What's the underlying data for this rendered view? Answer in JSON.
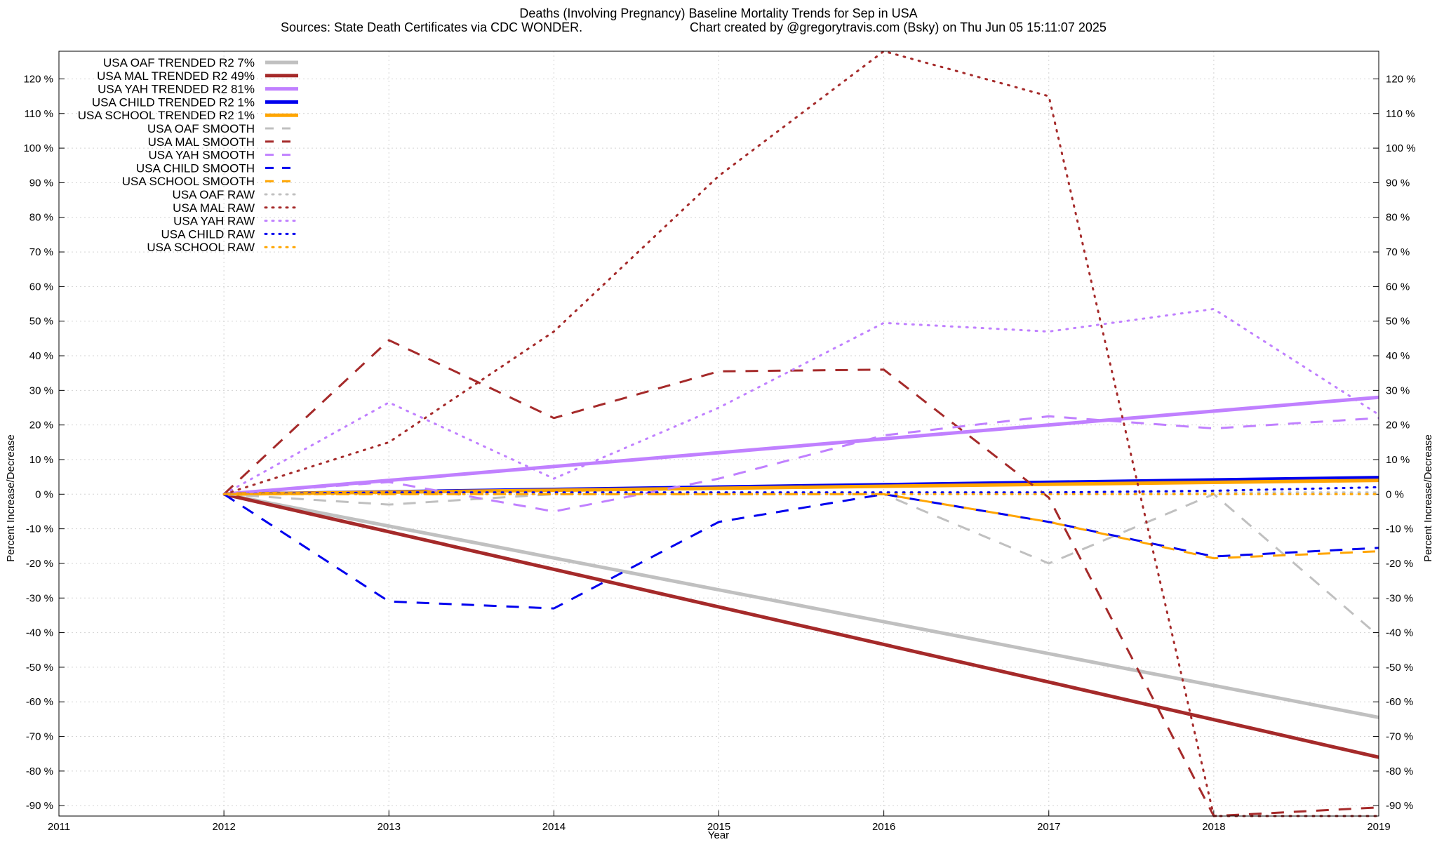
{
  "chart_data": {
    "type": "line",
    "title": "Deaths (Involving Pregnancy)  Baseline Mortality Trends for Sep in USA",
    "subtitle_left": "Sources: State Death Certificates via CDC WONDER.",
    "subtitle_right": "Chart created by @gregorytravis.com (Bsky) on Thu Jun 05 15:11:07 2025",
    "xlabel": "Year",
    "ylabel": "Percent Increase/Decrease",
    "ylabel_right": "Percent Increase/Decrease",
    "xlim": [
      2011,
      2019
    ],
    "ylim": [
      -93,
      128
    ],
    "x_ticks": [
      "2011",
      "2012",
      "2013",
      "2014",
      "2015",
      "2016",
      "2017",
      "2018",
      "2019"
    ],
    "y_ticks": [
      -90,
      -80,
      -70,
      -60,
      -50,
      -40,
      -30,
      -20,
      -10,
      0,
      10,
      20,
      30,
      40,
      50,
      60,
      70,
      80,
      90,
      100,
      110,
      120
    ],
    "y_tick_suffix": " %",
    "grid": true,
    "legend_position": "top-left",
    "series": [
      {
        "name": "USA OAF TRENDED R2   7%",
        "style": "solid",
        "width": 5,
        "color": "#c0c0c0",
        "x": [
          2012,
          2019
        ],
        "y": [
          0,
          -64.5
        ]
      },
      {
        "name": "USA MAL TRENDED R2  49%",
        "style": "solid",
        "width": 5,
        "color": "#a52a2a",
        "x": [
          2012,
          2019
        ],
        "y": [
          0,
          -76
        ]
      },
      {
        "name": "USA YAH TRENDED R2  81%",
        "style": "solid",
        "width": 5,
        "color": "#c080ff",
        "x": [
          2012,
          2019
        ],
        "y": [
          0,
          28
        ]
      },
      {
        "name": "USA CHILD TRENDED R2   1%",
        "style": "solid",
        "width": 5,
        "color": "#0000ee",
        "x": [
          2012,
          2019
        ],
        "y": [
          0,
          4.8
        ]
      },
      {
        "name": "USA SCHOOL TRENDED R2   1%",
        "style": "solid",
        "width": 5,
        "color": "#ffa500",
        "x": [
          2012,
          2019
        ],
        "y": [
          0,
          4.0
        ]
      },
      {
        "name": "USA OAF SMOOTH",
        "style": "dash",
        "width": 3,
        "color": "#c0c0c0",
        "x": [
          2012,
          2013,
          2014,
          2015,
          2016,
          2017,
          2018,
          2019
        ],
        "y": [
          0,
          -3,
          0,
          0,
          0,
          -20,
          0,
          -41
        ]
      },
      {
        "name": "USA MAL SMOOTH",
        "style": "dash",
        "width": 3,
        "color": "#a52a2a",
        "x": [
          2012,
          2013,
          2014,
          2015,
          2016,
          2017,
          2018,
          2019
        ],
        "y": [
          0,
          44.5,
          22,
          35.5,
          36,
          -1,
          -93,
          -90.5
        ]
      },
      {
        "name": "USA YAH SMOOTH",
        "style": "dash",
        "width": 3,
        "color": "#c080ff",
        "x": [
          2012,
          2013,
          2014,
          2015,
          2016,
          2017,
          2018,
          2019
        ],
        "y": [
          0,
          3.5,
          -5,
          4.5,
          17,
          22.5,
          19,
          22
        ]
      },
      {
        "name": "USA CHILD SMOOTH",
        "style": "dash",
        "width": 3,
        "color": "#0000ee",
        "x": [
          2012,
          2013,
          2014,
          2015,
          2016,
          2017,
          2018,
          2019
        ],
        "y": [
          0,
          -31,
          -33,
          -8,
          0,
          -8,
          -18,
          -15.5
        ]
      },
      {
        "name": "USA SCHOOL SMOOTH",
        "style": "dash",
        "width": 3,
        "color": "#ffa500",
        "x": [
          2012,
          2013,
          2014,
          2015,
          2016,
          2017,
          2018,
          2019
        ],
        "y": [
          0,
          0,
          0,
          0,
          0,
          -8,
          -18.5,
          -16.5
        ]
      },
      {
        "name": "USA OAF RAW",
        "style": "dot",
        "width": 3,
        "color": "#c0c0c0",
        "x": [
          2012,
          2013,
          2014,
          2015,
          2016,
          2017,
          2018,
          2019
        ],
        "y": [
          0,
          0.5,
          0.5,
          0.5,
          0.5,
          0.5,
          0.5,
          0.5
        ]
      },
      {
        "name": "USA MAL RAW",
        "style": "dot",
        "width": 3,
        "color": "#a52a2a",
        "x": [
          2012,
          2013,
          2014,
          2015,
          2016,
          2017,
          2018,
          2019
        ],
        "y": [
          0,
          15,
          47,
          92,
          128,
          115,
          -93,
          -93
        ]
      },
      {
        "name": "USA YAH RAW",
        "style": "dot",
        "width": 3,
        "color": "#c080ff",
        "x": [
          2012,
          2013,
          2014,
          2015,
          2016,
          2017,
          2018,
          2019
        ],
        "y": [
          0,
          26.5,
          4.5,
          25,
          49.5,
          47,
          53.5,
          23
        ]
      },
      {
        "name": "USA CHILD RAW",
        "style": "dot",
        "width": 3,
        "color": "#0000ee",
        "x": [
          2012,
          2013,
          2014,
          2015,
          2016,
          2017,
          2018,
          2019
        ],
        "y": [
          0,
          0.5,
          0.5,
          0.5,
          0.5,
          0.5,
          1,
          2
        ]
      },
      {
        "name": "USA SCHOOL RAW",
        "style": "dot",
        "width": 3,
        "color": "#ffa500",
        "x": [
          2012,
          2013,
          2014,
          2015,
          2016,
          2017,
          2018,
          2019
        ],
        "y": [
          0,
          0,
          0,
          0,
          0,
          0,
          0,
          0
        ]
      }
    ]
  }
}
